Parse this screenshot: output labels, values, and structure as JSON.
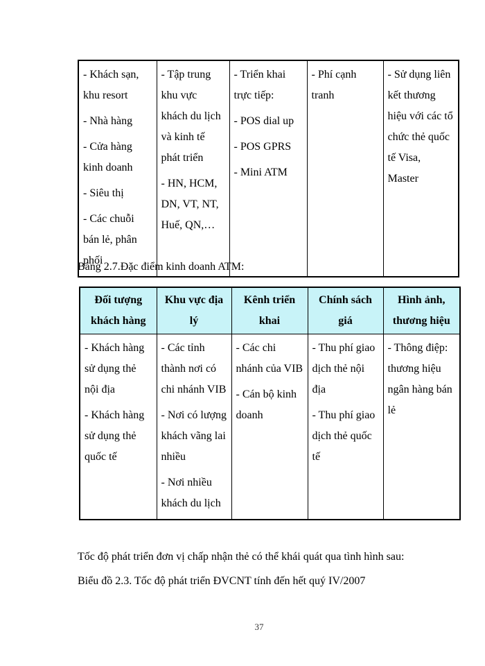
{
  "theme": {
    "header_bg": "#c8f3f8",
    "border_color": "#000000",
    "text_color": "#000000"
  },
  "table1": {
    "cells": [
      {
        "paragraphs": [
          "- Khách sạn, khu resort",
          "- Nhà hàng",
          "- Cửa hàng kinh doanh",
          "- Siêu thị",
          "- Các chuỗi bán lẻ, phân phối"
        ]
      },
      {
        "paragraphs": [
          "- Tập trung khu vực khách du lịch và kinh tế phát triển",
          "- HN, HCM, DN, VT, NT, Huế, QN,…"
        ]
      },
      {
        "paragraphs": [
          "- Triển khai trực tiếp:",
          "- POS dial up",
          "- POS GPRS",
          "- Mini ATM"
        ]
      },
      {
        "paragraphs": [
          "- Phí cạnh tranh"
        ]
      },
      {
        "paragraphs": [
          "- Sử dụng liên kết thương hiệu với các tổ chức thẻ quốc tế Visa, Master"
        ]
      }
    ]
  },
  "caption": "Bảng 2.7.Đặc điểm kinh doanh ATM:",
  "table2": {
    "headers": [
      "Đối tượng khách hàng",
      "Khu vực địa lý",
      "Kênh triển khai",
      "Chính sách giá",
      "Hình ảnh, thương hiệu"
    ],
    "cells": [
      {
        "paragraphs": [
          "- Khách hàng sử dụng thẻ nội địa",
          "- Khách hàng sử dụng thẻ quốc tế"
        ]
      },
      {
        "paragraphs": [
          "- Các tỉnh thành nơi có chi nhánh VIB",
          "- Nơi có lượng khách vãng lai nhiều",
          "- Nơi nhiều khách du lịch"
        ]
      },
      {
        "paragraphs": [
          "- Các chi nhánh của VIB",
          "- Cán bộ kinh doanh"
        ]
      },
      {
        "paragraphs": [
          "- Thu phí giao dịch thẻ nội địa",
          "- Thu phí giao dịch thẻ quốc tế"
        ]
      },
      {
        "paragraphs": [
          "- Thông điệp: thương hiệu ngân hàng bán lẻ"
        ]
      }
    ]
  },
  "body_text": {
    "line1": "Tốc độ phát triển đơn vị chấp nhận thẻ có thể khái quát qua tình hình sau:",
    "line2": "Biểu đồ 2.3. Tốc độ phát triển ĐVCNT tính đến hết quý IV/2007"
  },
  "page_number": "37"
}
